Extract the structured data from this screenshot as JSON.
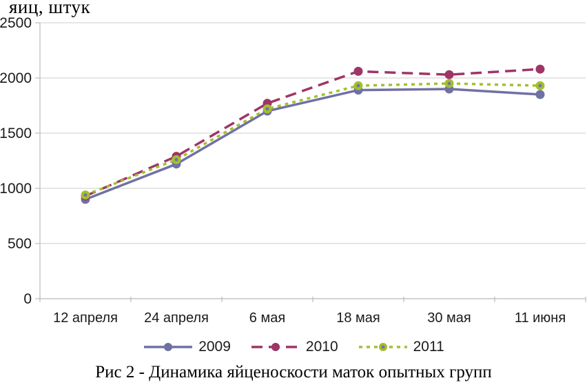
{
  "title_unit_label": "яиц, штук",
  "caption": "Рис 2 - Динамика яйценоскости маток опытных групп",
  "colors": {
    "series_2009": "#6F71A4",
    "series_2010": "#9E3566",
    "series_2011": "#A3BF2D",
    "marker_center_2011": "#7172A7",
    "gridline": "#D6D6D6",
    "axis": "#BFBFBF",
    "text": "#1A1A1A"
  },
  "chart_data": {
    "type": "line",
    "title": "яиц, штук",
    "xlabel": "",
    "ylabel": "яиц, штук",
    "categories": [
      "12 апреля",
      "24 апреля",
      "6 мая",
      "18 мая",
      "30 мая",
      "11 июня"
    ],
    "series": [
      {
        "name": "2009",
        "values": [
          900,
          1220,
          1700,
          1890,
          1900,
          1850
        ],
        "color": "#6F71A4",
        "dash": "none",
        "marker": "circle"
      },
      {
        "name": "2010",
        "values": [
          930,
          1290,
          1770,
          2060,
          2030,
          2080
        ],
        "color": "#9E3566",
        "dash": "16,9",
        "marker": "circle"
      },
      {
        "name": "2011",
        "values": [
          940,
          1260,
          1720,
          1930,
          1950,
          1930
        ],
        "color": "#A3BF2D",
        "dash": "5,6",
        "marker": "circle-dot",
        "marker_center": "#7172A7"
      }
    ],
    "ylim": [
      0,
      2500
    ],
    "ytick_step": 500,
    "yticks": [
      "0",
      "500",
      "1000",
      "1500",
      "2000",
      "2500"
    ],
    "grid": true,
    "legend_position": "bottom"
  }
}
